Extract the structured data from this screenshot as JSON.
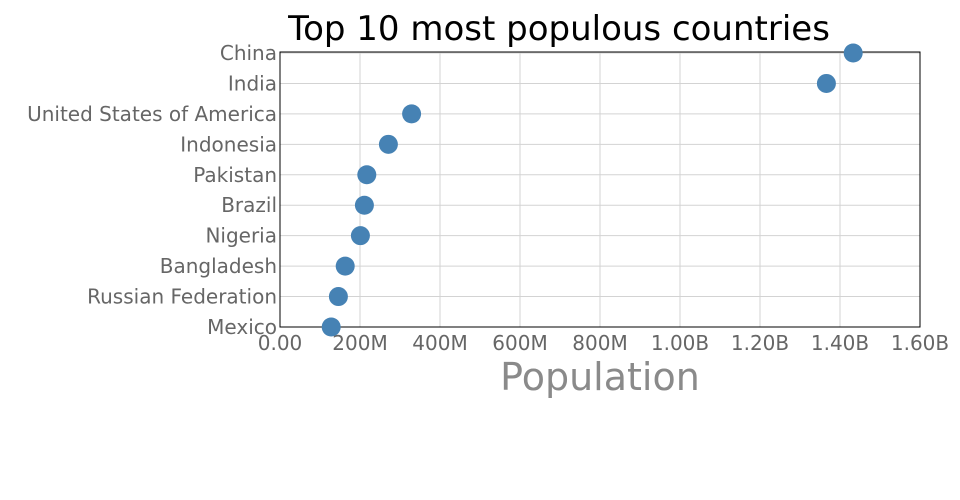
{
  "chart_data": {
    "type": "scatter",
    "title": "Top 10 most populous countries",
    "xlabel": "Population",
    "ylabel": "",
    "xlim": [
      0,
      1600000000
    ],
    "x_ticks": [
      0,
      200000000,
      400000000,
      600000000,
      800000000,
      1000000000,
      1200000000,
      1400000000,
      1600000000
    ],
    "x_tick_labels": [
      "0.00",
      "200M",
      "400M",
      "600M",
      "800M",
      "1.00B",
      "1.20B",
      "1.40B",
      "1.60B"
    ],
    "categories": [
      "China",
      "India",
      "United States of America",
      "Indonesia",
      "Pakistan",
      "Brazil",
      "Nigeria",
      "Bangladesh",
      "Russian Federation",
      "Mexico"
    ],
    "values": [
      1433000000,
      1366000000,
      329000000,
      271000000,
      217000000,
      211000000,
      201000000,
      163000000,
      146000000,
      128000000
    ],
    "marker_color": "#4682b4",
    "grid": true
  }
}
